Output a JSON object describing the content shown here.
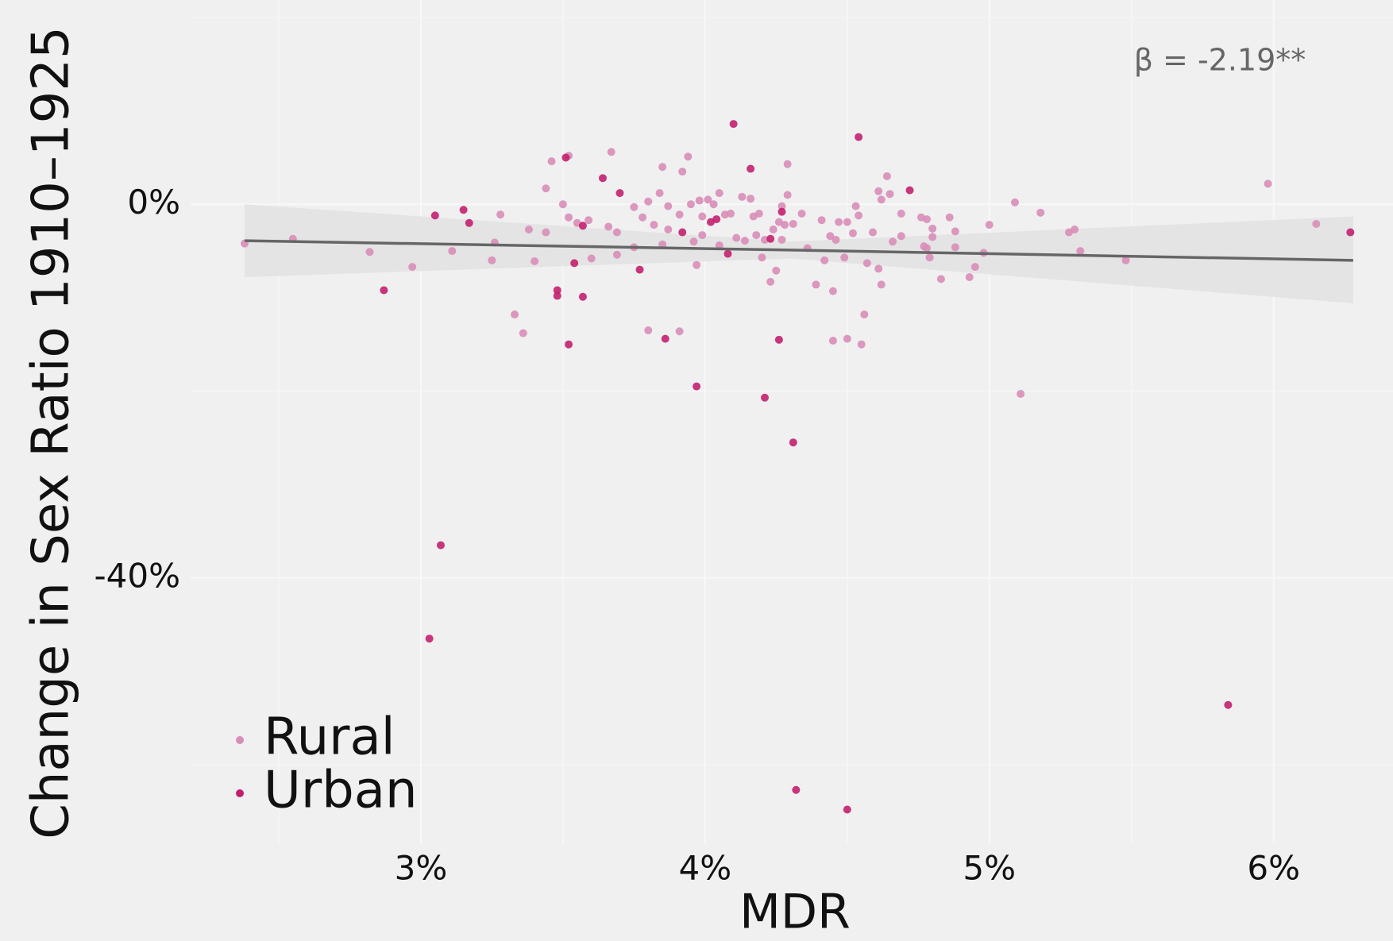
{
  "chart_data": {
    "type": "scatter",
    "x_label": "MDR",
    "y_label": "Change in Sex Ratio 1910–1925",
    "annotation": "β = -2.19**",
    "xlim": [
      2.19,
      6.42
    ],
    "ylim": [
      -68.5,
      20
    ],
    "xticks": [
      {
        "value": 3,
        "label": "3%"
      },
      {
        "value": 4,
        "label": "4%"
      },
      {
        "value": 5,
        "label": "5%"
      },
      {
        "value": 6,
        "label": "6%"
      }
    ],
    "yticks": [
      {
        "value": -40,
        "label": "-40%"
      },
      {
        "value": 0,
        "label": "0%"
      }
    ],
    "grid": true,
    "legend": "bottom-left",
    "series": [
      {
        "name": "Rural",
        "color": "#d88db8",
        "x": [
          2.38,
          2.55,
          2.82,
          2.97,
          3.11,
          3.25,
          3.28,
          3.26,
          3.33,
          3.36,
          3.38,
          3.4,
          3.44,
          3.46,
          3.52,
          3.5,
          3.52,
          3.44,
          3.55,
          3.59,
          3.6,
          3.67,
          3.66,
          3.69,
          3.69,
          3.75,
          3.75,
          3.78,
          3.8,
          3.82,
          3.8,
          3.84,
          3.85,
          3.85,
          3.87,
          3.87,
          3.91,
          3.91,
          3.92,
          3.94,
          3.95,
          3.96,
          3.97,
          3.98,
          3.99,
          3.99,
          4.01,
          4.03,
          4.05,
          4.05,
          4.07,
          4.09,
          4.11,
          4.13,
          4.14,
          4.16,
          4.17,
          4.18,
          4.19,
          4.2,
          4.21,
          4.23,
          4.24,
          4.25,
          4.26,
          4.27,
          4.27,
          4.28,
          4.29,
          4.29,
          4.31,
          4.34,
          4.36,
          4.39,
          4.41,
          4.42,
          4.44,
          4.45,
          4.45,
          4.46,
          4.47,
          4.49,
          4.5,
          4.5,
          4.52,
          4.53,
          4.55,
          4.56,
          4.57,
          4.59,
          4.61,
          4.62,
          4.62,
          4.61,
          4.64,
          4.65,
          4.66,
          4.69,
          4.69,
          4.76,
          4.78,
          4.79,
          4.8,
          4.8,
          4.83,
          4.86,
          4.88,
          4.88,
          4.93,
          4.95,
          4.98,
          5.0,
          5.09,
          5.11,
          5.18,
          5.28,
          5.3,
          5.32,
          5.48,
          5.98,
          6.15,
          4.77,
          4.78,
          4.54
        ],
        "values": [
          -4.2,
          -3.7,
          -5.1,
          -6.7,
          -5.0,
          -6.0,
          -1.1,
          -4.1,
          -11.8,
          -13.8,
          -2.7,
          -6.1,
          1.7,
          4.6,
          5.2,
          0,
          -1.4,
          -3.0,
          -2.0,
          -1.7,
          -5.8,
          5.6,
          -2.4,
          -3.0,
          -5.4,
          -0.3,
          -4.6,
          -1.4,
          0.3,
          -2.2,
          -13.5,
          1.2,
          4.0,
          -4.3,
          -0.2,
          -2.7,
          -1.1,
          -13.6,
          3.5,
          5.1,
          0,
          -4.0,
          -6.5,
          0.4,
          -1.3,
          -3.3,
          0.5,
          0,
          1.2,
          -4.4,
          -1.1,
          -1.0,
          -3.6,
          0.8,
          -3.9,
          0.6,
          -1.3,
          -3.3,
          -1.0,
          -5.7,
          -3.8,
          -8.3,
          -2.7,
          -7.1,
          -1.9,
          -3.8,
          -0.2,
          -2.2,
          4.3,
          1.0,
          -2.1,
          -1.0,
          -4.7,
          -8.6,
          -1.7,
          -6.0,
          -3.4,
          -14.6,
          -9.3,
          -3.8,
          -1.9,
          -5.7,
          -1.9,
          -14.4,
          -3.1,
          -0.2,
          -15.0,
          -11.8,
          -6.3,
          -3.0,
          1.4,
          0.5,
          -8.6,
          -6.9,
          3.0,
          1.1,
          -4.0,
          -1.0,
          -3.4,
          -1.4,
          -1.6,
          -5.7,
          -2.6,
          -3.5,
          -8.0,
          -1.4,
          -2.9,
          -4.6,
          -7.8,
          -6.7,
          -5.2,
          -2.2,
          0.2,
          -20.3,
          -0.9,
          -3.0,
          -2.7,
          -5.0,
          -6.0,
          2.2,
          -2.1,
          -4.5,
          -4.7,
          -1.2
        ]
      },
      {
        "name": "Urban",
        "color": "#c2206f",
        "x": [
          4.1,
          4.54,
          4.16,
          3.51,
          3.64,
          3.7,
          4.72,
          4.27,
          3.15,
          3.05,
          3.17,
          4.02,
          3.92,
          3.57,
          6.27,
          4.08,
          3.54,
          3.77,
          2.87,
          3.48,
          3.48,
          3.57,
          3.52,
          3.86,
          4.26,
          3.97,
          4.21,
          4.31,
          3.07,
          3.03,
          5.84,
          4.32,
          4.5,
          4.23,
          4.04
        ],
        "values": [
          8.6,
          7.2,
          3.8,
          5.0,
          2.8,
          1.2,
          1.5,
          -0.8,
          -0.6,
          -1.2,
          -2.0,
          -1.9,
          -3.0,
          -2.3,
          -3.0,
          -5.3,
          -6.3,
          -7.0,
          -9.2,
          -9.2,
          -9.8,
          -9.9,
          -15.0,
          -14.4,
          -14.5,
          -19.5,
          -20.7,
          -25.5,
          -36.5,
          -46.5,
          -53.6,
          -62.7,
          -64.8,
          -3.7,
          -1.6
        ]
      }
    ],
    "trend": {
      "color": "#666666",
      "band_color": "#e4e4e4",
      "x": [
        2.38,
        4.3,
        6.28
      ],
      "values": [
        -3.9,
        -4.9,
        -6.0
      ],
      "lower": [
        -7.8,
        -5.8,
        -10.6
      ],
      "upper": [
        0,
        -4.0,
        -1.3
      ]
    }
  }
}
